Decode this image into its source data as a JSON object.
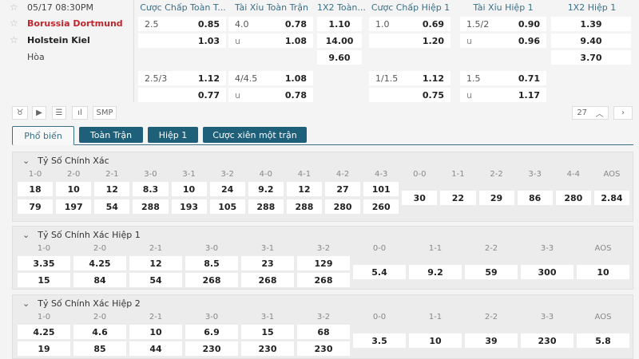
{
  "match": {
    "time": "05/17 08:30PM",
    "home": "Borussia Dortmund",
    "away": "Holstein Kiel",
    "draw": "Hòa",
    "home_color": "#c0272d"
  },
  "headers": [
    "Cược Chấp Toàn T...",
    "Tài Xỉu Toàn Trận",
    "1X2 Toàn...",
    "Cược Chấp Hiệp 1",
    "Tài Xỉu Hiệp 1",
    "1X2 Hiệp 1"
  ],
  "odds": {
    "ah_ft": [
      {
        "line": "2.5",
        "home": "0.85",
        "away": "1.03"
      },
      {
        "line": "2.5/3",
        "home": "1.12",
        "away": "0.77"
      }
    ],
    "ou_ft": [
      {
        "line": "4.0",
        "over": "0.78",
        "u": "u",
        "under": "1.08"
      },
      {
        "line": "4/4.5",
        "over": "1.08",
        "u": "u",
        "under": "0.78"
      }
    ],
    "x12_ft": [
      "1.10",
      "14.00",
      "9.60"
    ],
    "ah_h1": [
      {
        "line": "1.0",
        "home": "0.69",
        "away": "1.20"
      },
      {
        "line": "1/1.5",
        "home": "1.12",
        "away": "0.75"
      }
    ],
    "ou_h1": [
      {
        "line": "1.5/2",
        "over": "0.90",
        "u": "u",
        "under": "0.96"
      },
      {
        "line": "1.5",
        "over": "0.71",
        "u": "u",
        "under": "1.17"
      }
    ],
    "x12_h1": [
      "1.39",
      "9.40",
      "3.70"
    ]
  },
  "toolbar": {
    "smp": "SMP",
    "count": "27",
    "up": "^",
    "next": ">"
  },
  "tabs": [
    "Phổ biến",
    "Toàn Trận",
    "Hiệp 1",
    "Cược xiên một trận"
  ],
  "accent": "#1e5f7a",
  "sections": [
    {
      "title": "Tỷ Số Chính Xác",
      "labels": [
        "1-0",
        "2-0",
        "2-1",
        "3-0",
        "3-1",
        "3-2",
        "4-0",
        "4-1",
        "4-2",
        "4-3",
        "0-0",
        "1-1",
        "2-2",
        "3-3",
        "4-4",
        "AOS"
      ],
      "home": [
        "18",
        "10",
        "12",
        "8.3",
        "10",
        "24",
        "9.2",
        "12",
        "27",
        "101"
      ],
      "away": [
        "79",
        "197",
        "54",
        "288",
        "193",
        "105",
        "288",
        "288",
        "280",
        "260"
      ],
      "draw": [
        "30",
        "22",
        "29",
        "86",
        "280",
        "2.84"
      ]
    },
    {
      "title": "Tỷ Số Chính Xác Hiệp 1",
      "labels": [
        "1-0",
        "2-0",
        "2-1",
        "3-0",
        "3-1",
        "3-2",
        "0-0",
        "1-1",
        "2-2",
        "3-3",
        "AOS"
      ],
      "home": [
        "3.35",
        "4.25",
        "12",
        "8.5",
        "23",
        "129"
      ],
      "away": [
        "15",
        "84",
        "54",
        "268",
        "268",
        "268"
      ],
      "draw": [
        "5.4",
        "9.2",
        "59",
        "300",
        "10"
      ]
    },
    {
      "title": "Tỷ Số Chính Xác Hiệp 2",
      "labels": [
        "1-0",
        "2-0",
        "2-1",
        "3-0",
        "3-1",
        "3-2",
        "0-0",
        "1-1",
        "2-2",
        "3-3",
        "AOS"
      ],
      "home": [
        "4.25",
        "4.6",
        "10",
        "6.9",
        "15",
        "68"
      ],
      "away": [
        "19",
        "85",
        "44",
        "230",
        "230",
        "230"
      ],
      "draw": [
        "3.5",
        "10",
        "39",
        "230",
        "5.8"
      ]
    }
  ]
}
